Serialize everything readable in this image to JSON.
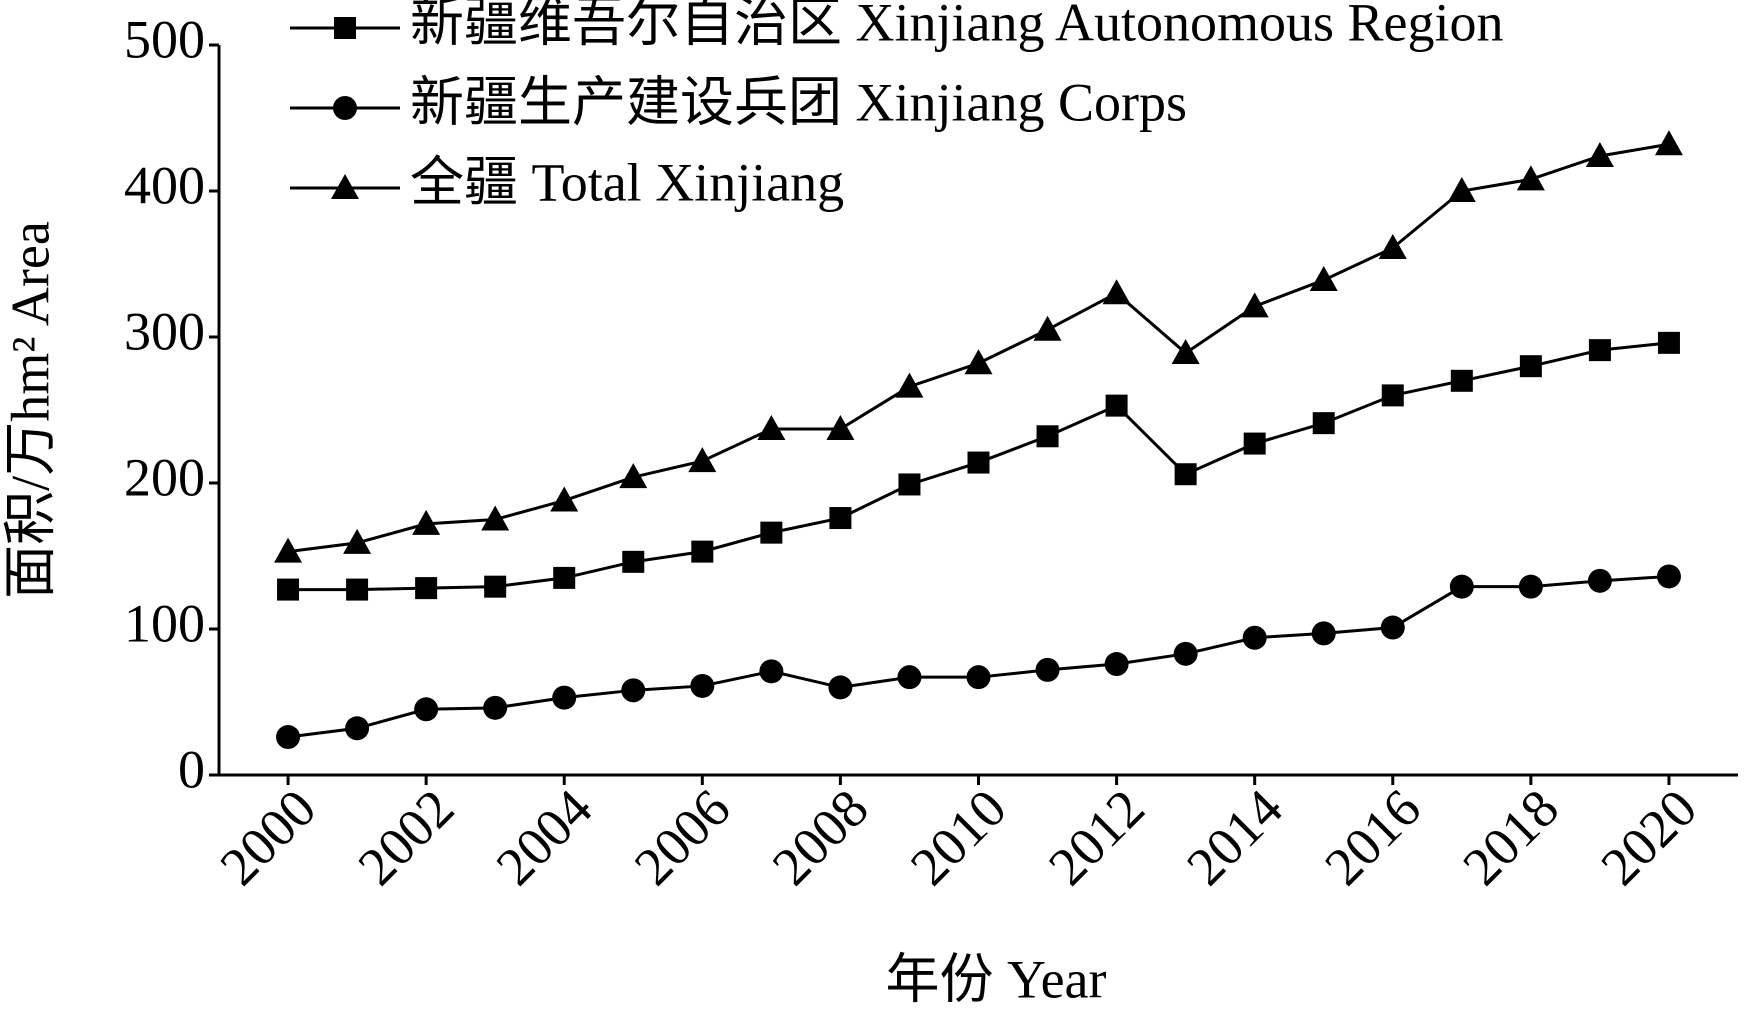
{
  "chart_data": {
    "type": "line",
    "x_label": "年份 Year",
    "y_label": "面积/万hm² Area",
    "x": [
      2000,
      2001,
      2002,
      2003,
      2004,
      2005,
      2006,
      2007,
      2008,
      2009,
      2010,
      2011,
      2012,
      2013,
      2014,
      2015,
      2016,
      2017,
      2018,
      2019,
      2020
    ],
    "series": [
      {
        "name": "新疆维吾尔自治区 Xinjiang Autonomous Region",
        "color": "#000000",
        "marker": "square",
        "values": [
          127,
          127,
          128,
          129,
          135,
          146,
          153,
          166,
          176,
          199,
          214,
          232,
          253,
          206,
          227,
          241,
          260,
          270,
          280,
          291,
          296
        ]
      },
      {
        "name": "新疆生产建设兵团 Xinjiang Corps",
        "color": "#000000",
        "marker": "circle",
        "values": [
          26,
          32,
          45,
          46,
          53,
          58,
          61,
          71,
          60,
          67,
          67,
          72,
          76,
          83,
          94,
          97,
          101,
          129,
          129,
          133,
          136
        ]
      },
      {
        "name": "全疆 Total Xinjiang",
        "color": "#000000",
        "marker": "triangle",
        "values": [
          153,
          159,
          172,
          175,
          188,
          204,
          215,
          237,
          237,
          266,
          282,
          305,
          330,
          289,
          321,
          339,
          361,
          400,
          408,
          424,
          432
        ]
      }
    ],
    "xlim": [
      1999,
      2021
    ],
    "xticks": [
      2000,
      2002,
      2004,
      2006,
      2008,
      2010,
      2012,
      2014,
      2016,
      2018,
      2020
    ],
    "ylim": [
      0,
      500
    ],
    "yticks": [
      0,
      100,
      200,
      300,
      400,
      500
    ],
    "grid": false,
    "legend": "top-left"
  }
}
